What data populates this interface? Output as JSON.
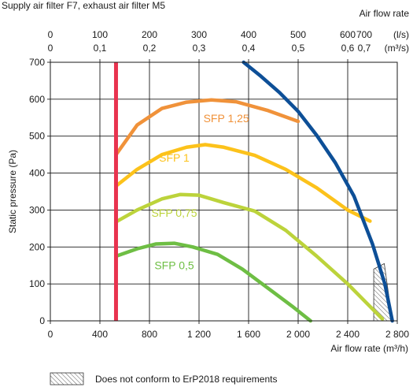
{
  "chart_data": {
    "type": "line",
    "title": "Supply air filter F7, exhaust air filter M5",
    "xlabel": "Air flow rate (m³/h)",
    "ylabel": "Static pressure (Pa)",
    "xlim": [
      0,
      2800
    ],
    "ylim": [
      0,
      700
    ],
    "x_ticks": [
      "0",
      "400",
      "800",
      "1 200",
      "1 600",
      "2 000",
      "2 400",
      "2 800"
    ],
    "y_ticks": [
      "0",
      "100",
      "200",
      "300",
      "400",
      "500",
      "600",
      "700"
    ],
    "grid": true,
    "top_axis": {
      "label": "Air flow rate",
      "ls_label": "(l/s)",
      "m3s_label": "(m³/s)",
      "ls_ticks": [
        "0",
        "100",
        "200",
        "300",
        "400",
        "500",
        "600",
        "700"
      ],
      "m3s_ticks": [
        "0",
        "0,1",
        "0,2",
        "0,3",
        "0,4",
        "0,5",
        "0,6",
        "0,7"
      ]
    },
    "series": [
      {
        "name": "SFP 1,25",
        "color": "#f0923a",
        "x": [
          530,
          700,
          900,
          1100,
          1300,
          1500,
          1750,
          2000
        ],
        "y": [
          450,
          530,
          575,
          592,
          598,
          593,
          570,
          540
        ]
      },
      {
        "name": "SFP 1",
        "color": "#fcc21b",
        "x": [
          530,
          700,
          900,
          1100,
          1250,
          1400,
          1650,
          1900,
          2150,
          2400,
          2580
        ],
        "y": [
          365,
          410,
          450,
          470,
          477,
          470,
          448,
          410,
          360,
          300,
          270
        ]
      },
      {
        "name": "SFP 0,75",
        "color": "#bcd33b",
        "x": [
          530,
          700,
          900,
          1050,
          1200,
          1400,
          1650,
          1900,
          2150,
          2400,
          2680
        ],
        "y": [
          268,
          300,
          330,
          342,
          340,
          320,
          297,
          245,
          175,
          100,
          5
        ]
      },
      {
        "name": "SFP 0,5",
        "color": "#6ebe44",
        "x": [
          530,
          700,
          850,
          1000,
          1150,
          1350,
          1550,
          1750,
          1950,
          2100
        ],
        "y": [
          175,
          195,
          208,
          210,
          200,
          180,
          140,
          90,
          40,
          0
        ]
      }
    ],
    "max_curve": {
      "color": "#0d4f97",
      "x": [
        1560,
        1700,
        1850,
        2000,
        2150,
        2300,
        2450,
        2600,
        2700,
        2760
      ],
      "y": [
        700,
        662,
        618,
        567,
        502,
        428,
        338,
        208,
        100,
        0
      ]
    },
    "min_flow_line": {
      "x": 530,
      "color": "#e8334f"
    },
    "hatched_region": {
      "x": [
        2610,
        2695,
        2760,
        2610
      ],
      "y": [
        140,
        155,
        0,
        0
      ]
    },
    "legend": {
      "label": "Does not conform to ErP2018 requirements"
    }
  }
}
